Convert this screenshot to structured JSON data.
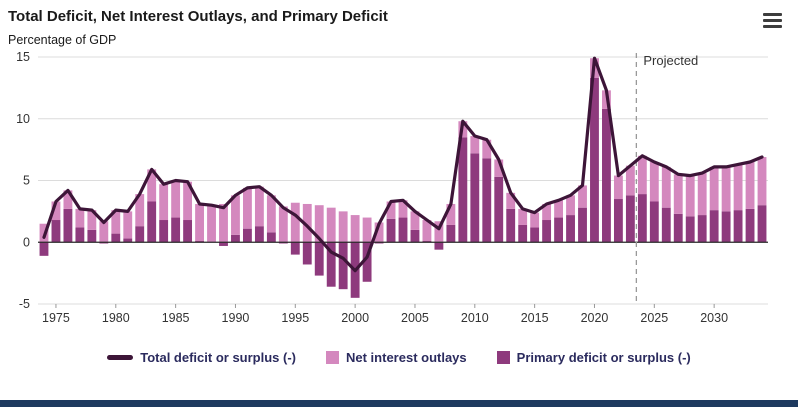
{
  "chart_data": {
    "type": "bar",
    "title": "Total Deficit, Net Interest Outlays, and Primary Deficit",
    "subtitle": "Percentage of GDP",
    "ylim": [
      -5,
      15
    ],
    "yticks": [
      -5,
      0,
      5,
      10,
      15
    ],
    "xticks": [
      1975,
      1980,
      1985,
      1990,
      1995,
      2000,
      2005,
      2010,
      2015,
      2020,
      2025,
      2030
    ],
    "grid": true,
    "legend_position": "bottom",
    "projection_start": 2024,
    "projected_label": "Projected",
    "categories": [
      1974,
      1975,
      1976,
      1977,
      1978,
      1979,
      1980,
      1981,
      1982,
      1983,
      1984,
      1985,
      1986,
      1987,
      1988,
      1989,
      1990,
      1991,
      1992,
      1993,
      1994,
      1995,
      1996,
      1997,
      1998,
      1999,
      2000,
      2001,
      2002,
      2003,
      2004,
      2005,
      2006,
      2007,
      2008,
      2009,
      2010,
      2011,
      2012,
      2013,
      2014,
      2015,
      2016,
      2017,
      2018,
      2019,
      2020,
      2021,
      2022,
      2023,
      2024,
      2025,
      2026,
      2027,
      2028,
      2029,
      2030,
      2031,
      2032,
      2033,
      2034
    ],
    "series": [
      {
        "name": "Total deficit or surplus (-)",
        "kind": "line",
        "values": [
          0.4,
          3.3,
          4.2,
          2.7,
          2.6,
          1.6,
          2.6,
          2.5,
          3.9,
          5.9,
          4.7,
          5.0,
          4.9,
          3.1,
          3.0,
          2.8,
          3.8,
          4.4,
          4.5,
          3.8,
          2.8,
          2.2,
          1.3,
          0.3,
          -0.8,
          -1.3,
          -2.3,
          -1.2,
          1.5,
          3.3,
          3.4,
          2.5,
          1.8,
          1.1,
          3.1,
          9.8,
          8.6,
          8.3,
          6.7,
          4.0,
          2.7,
          2.4,
          3.1,
          3.4,
          3.8,
          4.6,
          14.9,
          12.3,
          5.4,
          6.2,
          7.0,
          6.5,
          6.1,
          5.5,
          5.4,
          5.6,
          6.1,
          6.1,
          6.3,
          6.5,
          6.9
        ]
      },
      {
        "name": "Net interest outlays",
        "kind": "bar",
        "values": [
          1.5,
          1.5,
          1.5,
          1.5,
          1.6,
          1.7,
          1.9,
          2.2,
          2.6,
          2.6,
          2.9,
          3.0,
          3.1,
          3.0,
          3.0,
          3.1,
          3.2,
          3.3,
          3.2,
          3.0,
          2.9,
          3.2,
          3.1,
          3.0,
          2.8,
          2.5,
          2.2,
          2.0,
          1.6,
          1.4,
          1.4,
          1.5,
          1.7,
          1.7,
          1.7,
          1.3,
          1.4,
          1.5,
          1.4,
          1.3,
          1.3,
          1.2,
          1.3,
          1.4,
          1.6,
          1.8,
          1.6,
          1.5,
          1.9,
          2.4,
          3.1,
          3.2,
          3.3,
          3.2,
          3.3,
          3.4,
          3.5,
          3.6,
          3.7,
          3.8,
          3.9
        ]
      },
      {
        "name": "Primary deficit or surplus (-)",
        "kind": "bar",
        "values": [
          -1.1,
          1.8,
          2.7,
          1.2,
          1.0,
          -0.1,
          0.7,
          0.3,
          1.3,
          3.3,
          1.8,
          2.0,
          1.8,
          0.1,
          0.0,
          -0.3,
          0.6,
          1.1,
          1.3,
          0.8,
          -0.1,
          -1.0,
          -1.8,
          -2.7,
          -3.6,
          -3.8,
          -4.5,
          -3.2,
          -0.1,
          1.9,
          2.0,
          1.0,
          0.1,
          -0.6,
          1.4,
          8.5,
          7.2,
          6.8,
          5.3,
          2.7,
          1.4,
          1.2,
          1.8,
          2.0,
          2.2,
          2.8,
          13.3,
          10.8,
          3.5,
          3.8,
          3.9,
          3.3,
          2.8,
          2.3,
          2.1,
          2.2,
          2.6,
          2.5,
          2.6,
          2.7,
          3.0
        ]
      }
    ],
    "colors": {
      "line": "#3d1538",
      "net_interest_bar": "#d488be",
      "primary_bar": "#8e3a7d",
      "grid": "#dcdcdc",
      "zero_line": "#2b2b2b",
      "dashed_line": "#999999",
      "axis_text": "#333333",
      "legend_text": "#2b2b5e",
      "footer_bar": "#1e3a5f"
    }
  }
}
